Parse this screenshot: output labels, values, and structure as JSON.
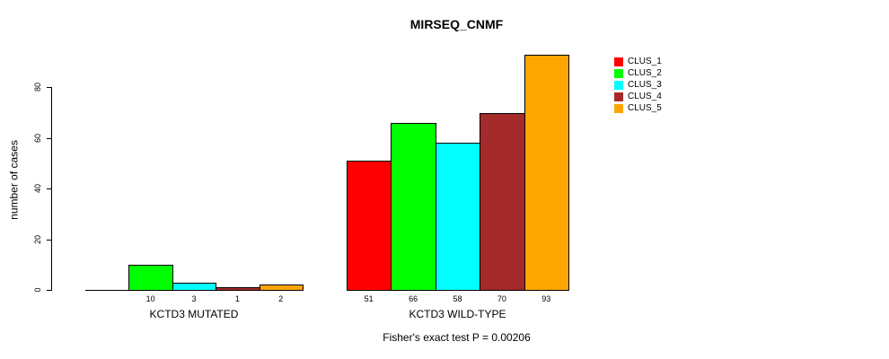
{
  "chart_data": {
    "type": "bar",
    "title": "MIRSEQ_CNMF",
    "ylabel": "number of cases",
    "xlabel": "",
    "caption": "Fisher's exact test P = 0.00206",
    "categories": [
      "KCTD3 MUTATED",
      "KCTD3 WILD-TYPE"
    ],
    "series": [
      {
        "name": "CLUS_1",
        "color": "#FF0000",
        "values": [
          0,
          51
        ]
      },
      {
        "name": "CLUS_2",
        "color": "#00FF00",
        "values": [
          10,
          66
        ]
      },
      {
        "name": "CLUS_3",
        "color": "#00FFFF",
        "values": [
          3,
          58
        ]
      },
      {
        "name": "CLUS_4",
        "color": "#A52A2A",
        "values": [
          1,
          70
        ]
      },
      {
        "name": "CLUS_5",
        "color": "#FFA500",
        "values": [
          2,
          93
        ]
      }
    ],
    "yticks": [
      0,
      20,
      40,
      60,
      80
    ],
    "ylim": [
      0,
      93
    ],
    "bar_value_labels_shown": true,
    "zero_value_label_hidden": true,
    "legend_position": "top-right",
    "grid": false,
    "bar_border_color": "#000000",
    "axis_color": "#000000",
    "background_color": "#FFFFFF"
  }
}
